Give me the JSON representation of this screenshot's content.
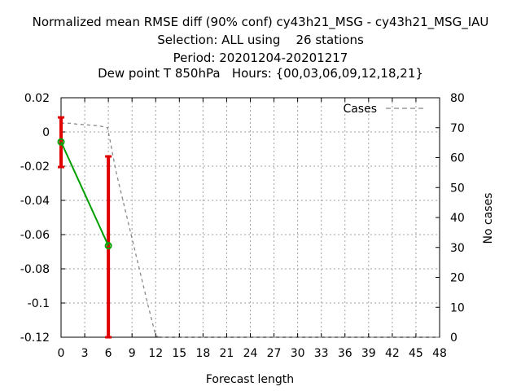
{
  "chart_data": {
    "type": "line",
    "title_lines": [
      "Normalized mean RMSE diff (90% conf) cy43h21_MSG - cy43h21_MSG_IAU",
      "Selection: ALL using    26 stations",
      "Period: 20201204-20201217",
      "Dew point T 850hPa   Hours: {00,03,06,09,12,18,21}"
    ],
    "xlabel": "Forecast length",
    "ylabel": "",
    "y2label": "No cases",
    "xlim": [
      0,
      48
    ],
    "ylim": [
      -0.12,
      0.02
    ],
    "y2lim": [
      0,
      80
    ],
    "x_ticks": [
      "0",
      "3",
      "6",
      "9",
      "12",
      "15",
      "18",
      "21",
      "24",
      "27",
      "30",
      "33",
      "36",
      "39",
      "42",
      "45",
      "48"
    ],
    "y_ticks": [
      "0.02",
      "0",
      "-0.02",
      "-0.04",
      "-0.06",
      "-0.08",
      "-0.1",
      "-0.12"
    ],
    "y2_ticks": [
      "80",
      "70",
      "60",
      "50",
      "40",
      "30",
      "20",
      "10",
      "0"
    ],
    "grid": true,
    "legend_position": "top-right",
    "series": [
      {
        "x": [
          0,
          6
        ],
        "y": [
          -0.0058,
          -0.0665
        ],
        "err_low": [
          -0.0205,
          -0.12
        ],
        "err_high": [
          0.0085,
          -0.0143
        ],
        "color": "#00a000",
        "error_color": "#e00000"
      },
      {
        "name": "Cases",
        "axis": "right",
        "style": "dashed",
        "color": "#888888",
        "x": [
          0,
          1,
          2,
          3,
          4,
          5,
          5.9,
          7,
          8,
          9,
          10,
          11,
          12,
          12.5,
          48
        ],
        "y": [
          71.5,
          71.5,
          71.2,
          71,
          70.8,
          70.5,
          70,
          55,
          44,
          33,
          22,
          11,
          0.5,
          0,
          0
        ]
      }
    ],
    "legend": {
      "label": "Cases"
    }
  }
}
